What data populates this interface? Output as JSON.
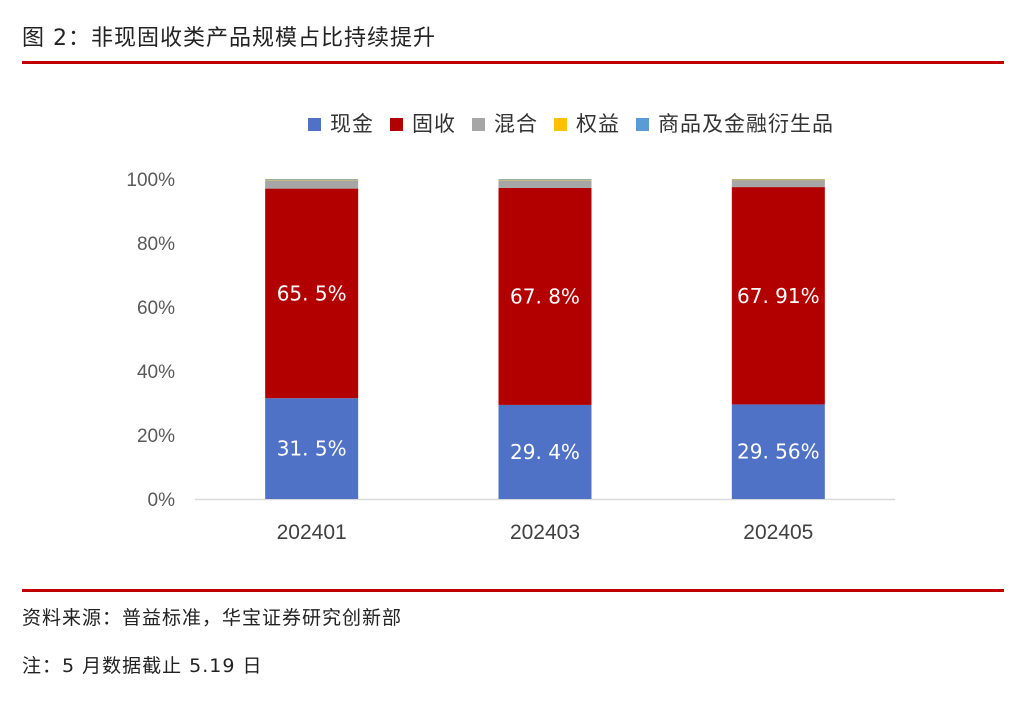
{
  "figure": {
    "title": "图 2：非现固收类产品规模占比持续提升",
    "source": "资料来源：普益标准，华宝证券研究创新部",
    "note": "注：5 月数据截止 5.19 日",
    "accent_color": "#c00000"
  },
  "chart_data": {
    "type": "bar",
    "stacked": true,
    "categories": [
      "202401",
      "202403",
      "202405"
    ],
    "series": [
      {
        "name": "现金",
        "color": "#4f72c6",
        "values": [
          31.5,
          29.4,
          29.56
        ],
        "labels": [
          "31. 5%",
          "29. 4%",
          "29. 56%"
        ]
      },
      {
        "name": "固收",
        "color": "#b20000",
        "values": [
          65.5,
          67.8,
          67.91
        ],
        "labels": [
          "65. 5%",
          "67. 8%",
          "67. 91%"
        ]
      },
      {
        "name": "混合",
        "color": "#a6a6a6",
        "values": [
          2.6,
          2.4,
          2.2
        ]
      },
      {
        "name": "权益",
        "color": "#ffc000",
        "values": [
          0.2,
          0.2,
          0.2
        ]
      },
      {
        "name": "商品及金融衍生品",
        "color": "#5b9bd5",
        "values": [
          0.2,
          0.2,
          0.13
        ]
      }
    ],
    "ylim": [
      0,
      100
    ],
    "yticks": [
      "0%",
      "20%",
      "40%",
      "60%",
      "80%",
      "100%"
    ],
    "grid": false,
    "legend_position": "top"
  }
}
